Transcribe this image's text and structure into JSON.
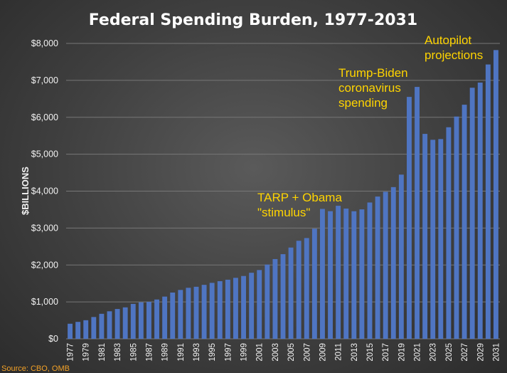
{
  "chart_data": {
    "type": "bar",
    "title": "Federal Spending Burden, 1977-2031",
    "ylabel": "$BILLIONS",
    "xlabel": "",
    "ylim": [
      0,
      8000
    ],
    "yticks": [
      0,
      1000,
      2000,
      3000,
      4000,
      5000,
      6000,
      7000,
      8000
    ],
    "ytick_labels": [
      "$0",
      "$1,000",
      "$2,000",
      "$3,000",
      "$4,000",
      "$5,000",
      "$6,000",
      "$7,000",
      "$8,000"
    ],
    "grid": true,
    "bar_color": "#4f75c2",
    "annotation_color": "#ffd400",
    "source_color": "#f2a127",
    "categories": [
      "1977",
      "1978",
      "1979",
      "1980",
      "1981",
      "1982",
      "1983",
      "1984",
      "1985",
      "1986",
      "1987",
      "1988",
      "1989",
      "1990",
      "1991",
      "1992",
      "1993",
      "1994",
      "1995",
      "1996",
      "1997",
      "1998",
      "1999",
      "2000",
      "2001",
      "2002",
      "2003",
      "2004",
      "2005",
      "2006",
      "2007",
      "2008",
      "2009",
      "2010",
      "2011",
      "2012",
      "2013",
      "2014",
      "2015",
      "2016",
      "2017",
      "2018",
      "2019",
      "2020",
      "2021",
      "2022",
      "2023",
      "2024",
      "2025",
      "2026",
      "2027",
      "2028",
      "2029",
      "2030",
      "2031"
    ],
    "values": [
      409,
      459,
      504,
      591,
      678,
      746,
      808,
      852,
      946,
      990,
      1004,
      1065,
      1144,
      1253,
      1324,
      1382,
      1410,
      1462,
      1516,
      1561,
      1601,
      1652,
      1702,
      1789,
      1863,
      2011,
      2160,
      2293,
      2472,
      2655,
      2729,
      2983,
      3518,
      3457,
      3603,
      3527,
      3455,
      3506,
      3692,
      3853,
      3982,
      4109,
      4447,
      6552,
      6822,
      5550,
      5390,
      5410,
      5730,
      6020,
      6340,
      6800,
      6940,
      7430,
      7820
    ],
    "xtick_labels": [
      "1977",
      "1979",
      "1981",
      "1983",
      "1985",
      "1987",
      "1989",
      "1991",
      "1993",
      "1995",
      "1997",
      "1999",
      "2001",
      "2003",
      "2005",
      "2007",
      "2009",
      "2011",
      "2013",
      "2015",
      "2017",
      "2019",
      "2021",
      "2023",
      "2025",
      "2027",
      "2029",
      "2031"
    ],
    "annotations": [
      {
        "lines": [
          "TARP + Obama",
          "\"stimulus\""
        ]
      },
      {
        "lines": [
          "Trump-Biden",
          "coronavirus",
          "spending"
        ]
      },
      {
        "lines": [
          "Autopilot",
          "projections"
        ]
      }
    ],
    "source": "Source: CBO, OMB"
  }
}
